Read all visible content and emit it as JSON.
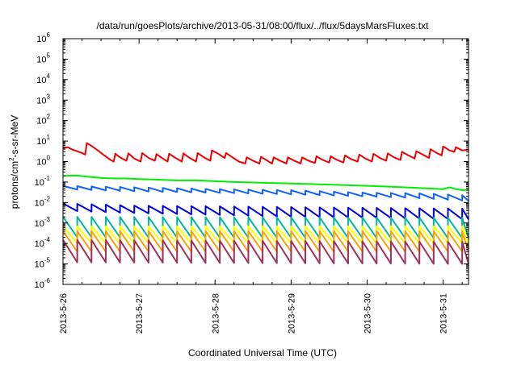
{
  "chart_data": {
    "type": "line",
    "title": "/data/run/goesPlots/archive/2013-05-31/08:00/flux/../flux/5daysMarsFluxes.txt",
    "xlabel": "Coordinated Universal Time (UTC)",
    "ylabel": "protons/cm²-s-sr-MeV",
    "ylabel_base": "protons/cm",
    "ylabel_sup": "2",
    "ylabel_rest": "-s-sr-MeV",
    "yscale": "log",
    "ylim": [
      1e-06,
      1000000.0
    ],
    "y_ticks": [
      {
        "value": 1e-06,
        "base": "10",
        "exp": "-6"
      },
      {
        "value": 1e-05,
        "base": "10",
        "exp": "-5"
      },
      {
        "value": 0.0001,
        "base": "10",
        "exp": "-4"
      },
      {
        "value": 0.001,
        "base": "10",
        "exp": "-3"
      },
      {
        "value": 0.01,
        "base": "10",
        "exp": "-2"
      },
      {
        "value": 0.1,
        "base": "10",
        "exp": "-1"
      },
      {
        "value": 1,
        "base": "10",
        "exp": "0"
      },
      {
        "value": 10,
        "base": "10",
        "exp": "1"
      },
      {
        "value": 100,
        "base": "10",
        "exp": "2"
      },
      {
        "value": 1000,
        "base": "10",
        "exp": "3"
      },
      {
        "value": 10000,
        "base": "10",
        "exp": "4"
      },
      {
        "value": 100000,
        "base": "10",
        "exp": "5"
      },
      {
        "value": 1000000,
        "base": "10",
        "exp": "6"
      }
    ],
    "x_range_days": [
      "2013-05-26 00:00",
      "2013-05-31 08:00"
    ],
    "x_ticks": [
      "2013-5-26",
      "2013-5-27",
      "2013-5-28",
      "2013-5-29",
      "2013-5-30",
      "2013-5-31"
    ],
    "grid": false,
    "legend": "none",
    "series": [
      {
        "color": "#ee0000",
        "points": [
          [
            "2013-05-26 00:00",
            4.5
          ],
          [
            "2013-05-26 01:30",
            5.0
          ],
          [
            "2013-05-26 03:00",
            3.8
          ],
          [
            "2013-05-26 04:30",
            3.2
          ],
          [
            "2013-05-26 06:00",
            2.6
          ],
          [
            "2013-05-26 07:00",
            2.2
          ],
          [
            "2013-05-26 07:30",
            8.0
          ],
          [
            "2013-05-26 09:00",
            5.8
          ],
          [
            "2013-05-26 11:00",
            3.5
          ],
          [
            "2013-05-26 13:00",
            2.0
          ],
          [
            "2013-05-26 15:00",
            1.2
          ],
          [
            "2013-05-26 16:00",
            1.0
          ],
          [
            "2013-05-26 16:30",
            2.4
          ],
          [
            "2013-05-26 18:00",
            1.6
          ],
          [
            "2013-05-26 20:00",
            1.1
          ],
          [
            "2013-05-26 20:40",
            2.5
          ],
          [
            "2013-05-26 22:30",
            1.4
          ],
          [
            "2013-05-27 00:30",
            1.0
          ],
          [
            "2013-05-27 01:00",
            2.6
          ],
          [
            "2013-05-27 03:00",
            1.5
          ],
          [
            "2013-05-27 05:00",
            1.1
          ],
          [
            "2013-05-27 05:30",
            2.3
          ],
          [
            "2013-05-27 07:30",
            1.4
          ],
          [
            "2013-05-27 09:00",
            1.0
          ],
          [
            "2013-05-27 09:30",
            2.4
          ],
          [
            "2013-05-27 11:30",
            1.5
          ],
          [
            "2013-05-27 13:30",
            1.0
          ],
          [
            "2013-05-27 14:00",
            2.5
          ],
          [
            "2013-05-27 16:00",
            1.5
          ],
          [
            "2013-05-27 18:00",
            1.0
          ],
          [
            "2013-05-27 18:30",
            2.6
          ],
          [
            "2013-05-27 20:30",
            1.6
          ],
          [
            "2013-05-27 22:30",
            1.1
          ],
          [
            "2013-05-27 23:00",
            3.5
          ],
          [
            "2013-05-28 01:00",
            2.4
          ],
          [
            "2013-05-28 03:00",
            1.5
          ],
          [
            "2013-05-28 03:30",
            2.6
          ],
          [
            "2013-05-28 05:30",
            1.6
          ],
          [
            "2013-05-28 07:30",
            1.0
          ],
          [
            "2013-05-28 09:30",
            0.8
          ],
          [
            "2013-05-28 10:00",
            1.6
          ],
          [
            "2013-05-28 12:00",
            1.1
          ],
          [
            "2013-05-28 14:00",
            0.8
          ],
          [
            "2013-05-28 14:30",
            1.7
          ],
          [
            "2013-05-28 16:30",
            1.1
          ],
          [
            "2013-05-28 18:00",
            0.8
          ],
          [
            "2013-05-28 18:30",
            1.6
          ],
          [
            "2013-05-28 20:30",
            1.1
          ],
          [
            "2013-05-28 22:30",
            0.8
          ],
          [
            "2013-05-28 23:00",
            1.6
          ],
          [
            "2013-05-29 01:00",
            1.1
          ],
          [
            "2013-05-29 03:00",
            0.8
          ],
          [
            "2013-05-29 03:30",
            1.6
          ],
          [
            "2013-05-29 05:30",
            1.1
          ],
          [
            "2013-05-29 07:30",
            0.85
          ],
          [
            "2013-05-29 08:00",
            1.8
          ],
          [
            "2013-05-29 10:00",
            1.2
          ],
          [
            "2013-05-29 12:00",
            0.9
          ],
          [
            "2013-05-29 12:30",
            1.8
          ],
          [
            "2013-05-29 14:30",
            1.2
          ],
          [
            "2013-05-29 16:30",
            0.9
          ],
          [
            "2013-05-29 17:00",
            2.0
          ],
          [
            "2013-05-29 19:00",
            1.3
          ],
          [
            "2013-05-29 21:00",
            1.0
          ],
          [
            "2013-05-29 21:30",
            2.2
          ],
          [
            "2013-05-29 23:30",
            1.4
          ],
          [
            "2013-05-30 01:30",
            1.0
          ],
          [
            "2013-05-30 02:00",
            2.4
          ],
          [
            "2013-05-30 04:00",
            1.5
          ],
          [
            "2013-05-30 06:00",
            1.1
          ],
          [
            "2013-05-30 06:30",
            2.5
          ],
          [
            "2013-05-30 08:30",
            1.6
          ],
          [
            "2013-05-30 10:30",
            1.2
          ],
          [
            "2013-05-30 11:00",
            3.0
          ],
          [
            "2013-05-30 13:00",
            2.0
          ],
          [
            "2013-05-30 15:00",
            1.4
          ],
          [
            "2013-05-30 15:30",
            3.2
          ],
          [
            "2013-05-30 17:30",
            2.2
          ],
          [
            "2013-05-30 19:30",
            1.5
          ],
          [
            "2013-05-30 20:00",
            4.0
          ],
          [
            "2013-05-30 22:00",
            2.6
          ],
          [
            "2013-05-30 23:30",
            2.0
          ],
          [
            "2013-05-31 00:00",
            5.5
          ],
          [
            "2013-05-31 02:00",
            3.5
          ],
          [
            "2013-05-31 03:30",
            3.0
          ],
          [
            "2013-05-31 04:00",
            5.0
          ],
          [
            "2013-05-31 06:00",
            3.5
          ],
          [
            "2013-05-31 08:00",
            3.8
          ]
        ]
      },
      {
        "color": "#00ee00",
        "points": [
          [
            "2013-05-26 00:00",
            0.2
          ],
          [
            "2013-05-26 04:00",
            0.21
          ],
          [
            "2013-05-26 08:00",
            0.18
          ],
          [
            "2013-05-26 12:00",
            0.16
          ],
          [
            "2013-05-26 16:00",
            0.15
          ],
          [
            "2013-05-26 20:00",
            0.15
          ],
          [
            "2013-05-27 00:00",
            0.14
          ],
          [
            "2013-05-27 06:00",
            0.13
          ],
          [
            "2013-05-27 12:00",
            0.12
          ],
          [
            "2013-05-27 18:00",
            0.12
          ],
          [
            "2013-05-28 00:00",
            0.11
          ],
          [
            "2013-05-28 06:00",
            0.1
          ],
          [
            "2013-05-28 12:00",
            0.095
          ],
          [
            "2013-05-28 18:00",
            0.09
          ],
          [
            "2013-05-29 00:00",
            0.085
          ],
          [
            "2013-05-29 06:00",
            0.08
          ],
          [
            "2013-05-29 12:00",
            0.075
          ],
          [
            "2013-05-29 18:00",
            0.07
          ],
          [
            "2013-05-30 00:00",
            0.065
          ],
          [
            "2013-05-30 06:00",
            0.06
          ],
          [
            "2013-05-30 12:00",
            0.055
          ],
          [
            "2013-05-30 18:00",
            0.05
          ],
          [
            "2013-05-31 00:00",
            0.045
          ],
          [
            "2013-05-31 02:00",
            0.055
          ],
          [
            "2013-05-31 04:00",
            0.045
          ],
          [
            "2013-05-31 06:00",
            0.04
          ],
          [
            "2013-05-31 08:00",
            0.042
          ]
        ]
      },
      {
        "color": "#1060ff",
        "sawtooth": {
          "period_hours": 4.5,
          "start": "2013-05-26 00:00",
          "end": "2013-05-31 08:00",
          "peak": [
            [
              "2013-05-26 00:00",
              0.065
            ],
            [
              "2013-05-27 00:00",
              0.055
            ],
            [
              "2013-05-28 00:00",
              0.045
            ],
            [
              "2013-05-29 00:00",
              0.04
            ],
            [
              "2013-05-30 00:00",
              0.03
            ],
            [
              "2013-05-30 18:00",
              0.028
            ],
            [
              "2013-05-31 08:00",
              0.022
            ]
          ],
          "trough": [
            [
              "2013-05-26 00:00",
              0.045
            ],
            [
              "2013-05-27 00:00",
              0.035
            ],
            [
              "2013-05-28 00:00",
              0.03
            ],
            [
              "2013-05-29 00:00",
              0.025
            ],
            [
              "2013-05-30 00:00",
              0.02
            ],
            [
              "2013-05-30 18:00",
              0.016
            ],
            [
              "2013-05-31 08:00",
              0.012
            ]
          ]
        }
      },
      {
        "color": "#0000dd",
        "sawtooth": {
          "period_hours": 4.5,
          "start": "2013-05-26 00:00",
          "end": "2013-05-31 08:00",
          "peak": [
            [
              "2013-05-26 00:00",
              0.009
            ],
            [
              "2013-05-27 00:00",
              0.007
            ],
            [
              "2013-05-28 00:00",
              0.0065
            ],
            [
              "2013-05-29 00:00",
              0.006
            ],
            [
              "2013-05-30 00:00",
              0.0055
            ],
            [
              "2013-05-31 08:00",
              0.005
            ]
          ],
          "trough": [
            [
              "2013-05-26 00:00",
              0.004
            ],
            [
              "2013-05-27 00:00",
              0.003
            ],
            [
              "2013-05-28 00:00",
              0.0025
            ],
            [
              "2013-05-29 00:00",
              0.002
            ],
            [
              "2013-05-30 00:00",
              0.0018
            ],
            [
              "2013-05-31 08:00",
              0.0015
            ]
          ]
        }
      },
      {
        "color": "#00b89a",
        "sawtooth": {
          "period_hours": 4.5,
          "start": "2013-05-26 00:00",
          "end": "2013-05-31 08:00",
          "peak": [
            [
              "2013-05-26 00:00",
              0.002
            ],
            [
              "2013-05-31 08:00",
              0.0018
            ]
          ],
          "trough": [
            [
              "2013-05-26 00:00",
              0.0002
            ],
            [
              "2013-05-31 08:00",
              0.00018
            ]
          ]
        }
      },
      {
        "color": "#ffff00",
        "sawtooth": {
          "period_hours": 4.5,
          "start": "2013-05-26 00:00",
          "end": "2013-05-31 08:00",
          "peak": [
            [
              "2013-05-26 00:00",
              0.0007
            ],
            [
              "2013-05-31 08:00",
              0.0007
            ]
          ],
          "trough": [
            [
              "2013-05-26 00:00",
              0.0001
            ],
            [
              "2013-05-31 08:00",
              0.0001
            ]
          ]
        }
      },
      {
        "color": "#ffa000",
        "sawtooth": {
          "period_hours": 4.5,
          "start": "2013-05-26 00:00",
          "end": "2013-05-31 08:00",
          "peak": [
            [
              "2013-05-26 00:00",
              0.0004
            ],
            [
              "2013-05-31 08:00",
              0.0004
            ]
          ],
          "trough": [
            [
              "2013-05-26 00:00",
              4e-05
            ],
            [
              "2013-05-31 08:00",
              4e-05
            ]
          ]
        }
      },
      {
        "color": "#a03060",
        "sawtooth": {
          "period_hours": 4.5,
          "start": "2013-05-26 00:00",
          "end": "2013-05-31 08:00",
          "peak": [
            [
              "2013-05-26 00:00",
              0.00015
            ],
            [
              "2013-05-31 08:00",
              0.00012
            ]
          ],
          "trough": [
            [
              "2013-05-26 00:00",
              1.2e-05
            ],
            [
              "2013-05-31 08:00",
              1e-05
            ]
          ]
        }
      }
    ]
  }
}
